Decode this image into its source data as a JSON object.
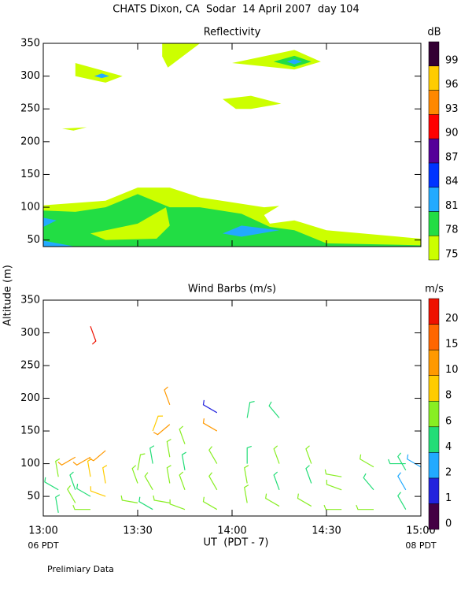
{
  "title": "CHATS Dixon, CA  Sodar  14 April 2007  day 104",
  "x_label": "UT  (PDT - 7)",
  "x_start_label": "06 PDT",
  "x_end_label": "08 PDT",
  "y_label": "Altitude (m)",
  "note": "Prelimiary Data",
  "chart_data": [
    {
      "type": "contour",
      "title": "Reflectivity",
      "unit": "dB",
      "xlim": [
        13,
        15
      ],
      "ylim": [
        40,
        350
      ],
      "xticks": [
        {
          "value": 13,
          "label": "13:00"
        },
        {
          "value": 13.5,
          "label": "13:30"
        },
        {
          "value": 14,
          "label": "14:00"
        },
        {
          "value": 14.5,
          "label": "14:30"
        },
        {
          "value": 15,
          "label": "15:00"
        }
      ],
      "yticks": [
        50,
        100,
        150,
        200,
        250,
        300,
        350
      ],
      "levels": [
        75,
        78,
        81,
        84,
        87,
        90,
        93,
        96,
        99
      ],
      "level_colors": [
        "#ccff00",
        "#22dd44",
        "#22aaff",
        "#0033ff",
        "#550099",
        "#ff0000",
        "#ff8800",
        "#ffcc00",
        "#330033"
      ],
      "regions": [
        {
          "level": 75,
          "points": [
            [
              13,
              40
            ],
            [
              13,
              103
            ],
            [
              13.33,
              110
            ],
            [
              13.5,
              130
            ],
            [
              13.67,
              130
            ],
            [
              13.83,
              115
            ],
            [
              14.17,
              100
            ],
            [
              14.25,
              102
            ],
            [
              14.17,
              88
            ],
            [
              14.2,
              75
            ],
            [
              14.33,
              80
            ],
            [
              14.5,
              65
            ],
            [
              15,
              52
            ],
            [
              15,
              40
            ]
          ]
        },
        {
          "level": 78,
          "points": [
            [
              13,
              40
            ],
            [
              13,
              95
            ],
            [
              13.17,
              93
            ],
            [
              13.33,
              100
            ],
            [
              13.5,
              120
            ],
            [
              13.67,
              100
            ],
            [
              13.83,
              100
            ],
            [
              14.05,
              90
            ],
            [
              14.2,
              70
            ],
            [
              14.33,
              65
            ],
            [
              14.5,
              45
            ],
            [
              15,
              42
            ],
            [
              15,
              40
            ]
          ]
        },
        {
          "level": 75,
          "points": [
            [
              13.25,
              60
            ],
            [
              13.5,
              75
            ],
            [
              13.65,
              100
            ],
            [
              13.67,
              72
            ],
            [
              13.6,
              52
            ],
            [
              13.33,
              50
            ]
          ]
        },
        {
          "level": 81,
          "points": [
            [
              13,
              70
            ],
            [
              13.07,
              80
            ],
            [
              13,
              84
            ]
          ]
        },
        {
          "level": 81,
          "points": [
            [
              13,
              40
            ],
            [
              13,
              49
            ],
            [
              13.17,
              40
            ]
          ]
        },
        {
          "level": 81,
          "points": [
            [
              13.95,
              60
            ],
            [
              14.05,
              72
            ],
            [
              14.25,
              65
            ],
            [
              14.05,
              55
            ]
          ]
        },
        {
          "level": 75,
          "points": [
            [
              13.17,
              320
            ],
            [
              13.42,
              300
            ],
            [
              13.33,
              290
            ],
            [
              13.17,
              300
            ]
          ]
        },
        {
          "level": 81,
          "points": [
            [
              13.27,
              300
            ],
            [
              13.31,
              304
            ],
            [
              13.35,
              300
            ],
            [
              13.31,
              297
            ]
          ]
        },
        {
          "level": 75,
          "points": [
            [
              13.63,
              350
            ],
            [
              13.83,
              350
            ],
            [
              13.66,
              313
            ],
            [
              13.63,
              330
            ]
          ]
        },
        {
          "level": 75,
          "points": [
            [
              14,
              320
            ],
            [
              14.33,
              340
            ],
            [
              14.47,
              322
            ],
            [
              14.33,
              310
            ]
          ]
        },
        {
          "level": 78,
          "points": [
            [
              14.22,
              322
            ],
            [
              14.33,
              331
            ],
            [
              14.42,
              322
            ],
            [
              14.33,
              314
            ]
          ]
        },
        {
          "level": 81,
          "points": [
            [
              14.29,
              322
            ],
            [
              14.33,
              326
            ],
            [
              14.37,
              322
            ],
            [
              14.33,
              318
            ]
          ]
        },
        {
          "level": 75,
          "points": [
            [
              13.95,
              265
            ],
            [
              14.1,
              270
            ],
            [
              14.26,
              258
            ],
            [
              14.1,
              250
            ],
            [
              14.02,
              250
            ]
          ]
        },
        {
          "level": 75,
          "points": [
            [
              13.1,
              220
            ],
            [
              13.23,
              222
            ],
            [
              13.16,
              217
            ]
          ]
        }
      ]
    },
    {
      "type": "barbs",
      "title": "Wind Barbs (m/s)",
      "unit": "m/s",
      "xlim": [
        13,
        15
      ],
      "ylim": [
        20,
        350
      ],
      "xticks": [
        {
          "value": 13,
          "label": "13:00"
        },
        {
          "value": 13.5,
          "label": "13:30"
        },
        {
          "value": 14,
          "label": "14:00"
        },
        {
          "value": 14.5,
          "label": "14:30"
        },
        {
          "value": 15,
          "label": "15:00"
        }
      ],
      "yticks": [
        50,
        100,
        150,
        200,
        250,
        300,
        350
      ],
      "levels": [
        0,
        1,
        2,
        4,
        6,
        8,
        10,
        15,
        20
      ],
      "level_colors": [
        "#440044",
        "#2222dd",
        "#22aaff",
        "#22dd77",
        "#88ee22",
        "#ffcc00",
        "#ff9900",
        "#ff6600",
        "#ee1100"
      ],
      "x": [
        13.08,
        13.08,
        13.08,
        13.17,
        13.17,
        13.17,
        13.25,
        13.25,
        13.25,
        13.25,
        13.25,
        13.33,
        13.33,
        13.33,
        13.5,
        13.5,
        13.5,
        13.58,
        13.58,
        13.58,
        13.58,
        13.67,
        13.67,
        13.67,
        13.67,
        13.67,
        13.75,
        13.75,
        13.75,
        13.75,
        13.92,
        13.92,
        13.92,
        13.92,
        13.92,
        14.08,
        14.08,
        14.08,
        14.08,
        14.25,
        14.25,
        14.25,
        14.25,
        14.42,
        14.42,
        14.42,
        14.58,
        14.58,
        14.58,
        14.75,
        14.75,
        14.75,
        14.92,
        14.92,
        14.92,
        14.92,
        15
      ],
      "altitude": [
        25,
        60,
        80,
        40,
        60,
        110,
        30,
        50,
        80,
        110,
        310,
        50,
        70,
        120,
        40,
        70,
        90,
        30,
        60,
        100,
        150,
        40,
        70,
        110,
        160,
        190,
        30,
        60,
        90,
        130,
        30,
        60,
        100,
        150,
        178,
        40,
        70,
        100,
        170,
        35,
        60,
        100,
        170,
        35,
        70,
        100,
        30,
        60,
        80,
        30,
        60,
        95,
        30,
        60,
        90,
        100,
        95
      ],
      "speed": [
        5,
        5,
        6,
        6,
        5,
        10,
        6,
        5,
        8,
        12,
        21,
        9,
        8,
        10,
        6,
        7,
        6,
        5,
        6,
        5,
        9,
        6,
        6,
        6,
        14,
        12,
        6,
        6,
        5,
        6,
        6,
        6,
        6,
        13,
        1.5,
        6,
        6,
        4,
        4,
        6,
        5,
        6,
        4,
        6,
        5,
        6,
        6,
        6,
        6,
        6,
        4,
        6,
        4,
        3,
        4,
        5,
        3
      ],
      "direction": [
        350,
        300,
        350,
        330,
        340,
        240,
        270,
        300,
        350,
        240,
        160,
        290,
        350,
        230,
        280,
        340,
        10,
        300,
        330,
        350,
        20,
        280,
        350,
        350,
        230,
        340,
        290,
        340,
        350,
        340,
        300,
        330,
        330,
        300,
        300,
        350,
        350,
        0,
        10,
        300,
        340,
        340,
        320,
        300,
        340,
        340,
        270,
        290,
        280,
        270,
        320,
        300,
        330,
        330,
        330,
        270,
        300
      ]
    }
  ]
}
